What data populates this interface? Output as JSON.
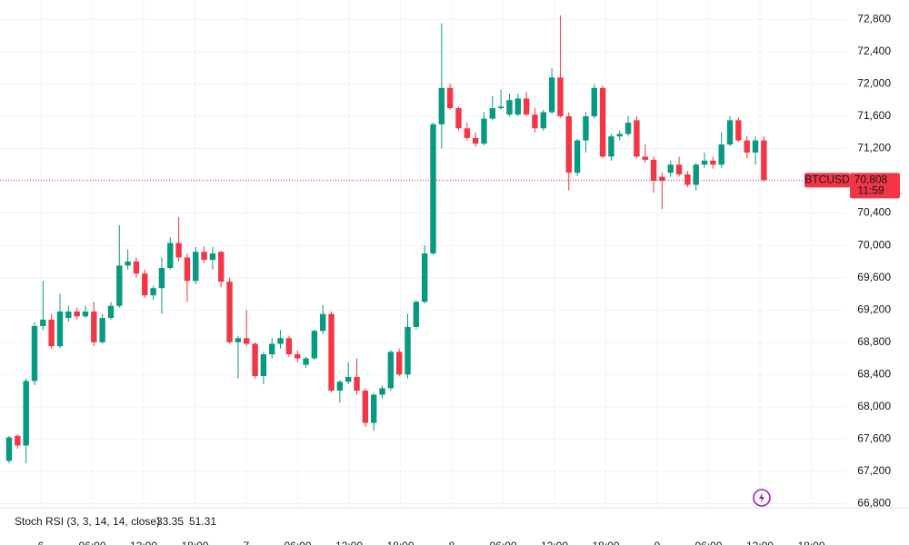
{
  "chart_data": {
    "type": "candlestick",
    "symbol": "BTCUSD",
    "open": [
      67330,
      67640,
      67520,
      68320,
      69000,
      69080,
      68750,
      69100,
      69180,
      69120,
      69180,
      68800,
      69100,
      69250,
      69750,
      69800,
      69650,
      69380,
      69470,
      69720,
      70030,
      69850,
      69560,
      69920,
      69820,
      69920,
      69550,
      68800,
      68850,
      68780,
      68380,
      68650,
      68780,
      68850,
      68650,
      68520,
      68600,
      68940,
      69150,
      68200,
      68310,
      68370,
      68200,
      67800,
      68150,
      68230,
      68680,
      68400,
      68990,
      69300,
      69900,
      71500,
      71950,
      71700,
      71450,
      71330,
      71260,
      71570,
      71700,
      71620,
      71620,
      71820,
      71620,
      71450,
      71650,
      72080,
      71600,
      70900,
      71300,
      71600,
      71950,
      71100,
      71350,
      71380,
      71550,
      71100,
      71060,
      70850,
      70900,
      71000,
      70880,
      70750,
      71000,
      71050,
      71000,
      71250,
      71550,
      71300,
      71150,
      71300
    ],
    "high": [
      67640,
      67660,
      68350,
      69050,
      69560,
      69150,
      69400,
      69250,
      69230,
      69250,
      69300,
      69150,
      69300,
      70250,
      69950,
      69850,
      69700,
      69500,
      69850,
      70100,
      70350,
      69900,
      69980,
      69990,
      69980,
      69930,
      69600,
      68880,
      69200,
      68800,
      68680,
      68850,
      68950,
      68880,
      68700,
      68620,
      68960,
      69260,
      69180,
      68330,
      68550,
      68600,
      68230,
      68170,
      68260,
      68700,
      68720,
      69150,
      69320,
      70000,
      71520,
      72750,
      72000,
      71720,
      71520,
      71400,
      71650,
      71850,
      71930,
      71880,
      71880,
      71900,
      71700,
      71680,
      72200,
      72850,
      71650,
      71320,
      71650,
      72000,
      71980,
      71380,
      71420,
      71600,
      71600,
      71250,
      71100,
      70900,
      71050,
      71100,
      70920,
      71020,
      71150,
      71100,
      71400,
      71600,
      71580,
      71350,
      71350,
      71350
    ],
    "low": [
      67300,
      67480,
      67300,
      68270,
      68950,
      68720,
      68730,
      69050,
      69080,
      69100,
      68750,
      68780,
      69080,
      69230,
      69700,
      69600,
      69350,
      69320,
      69150,
      69700,
      69800,
      69300,
      69520,
      69780,
      69700,
      69480,
      68780,
      68350,
      68750,
      68350,
      68280,
      68600,
      68720,
      68620,
      68550,
      68480,
      68580,
      68900,
      68180,
      68050,
      68280,
      68150,
      67750,
      67700,
      68100,
      68200,
      68380,
      68350,
      68960,
      69280,
      69880,
      71200,
      71680,
      71420,
      71300,
      71220,
      71240,
      71550,
      71680,
      71600,
      71600,
      71600,
      71400,
      71420,
      71630,
      71580,
      70680,
      70860,
      71150,
      71580,
      71080,
      71050,
      71300,
      71350,
      71080,
      71020,
      70650,
      70450,
      70850,
      70850,
      70720,
      70680,
      70960,
      70950,
      70960,
      71230,
      71280,
      71080,
      71000,
      70790
    ],
    "close": [
      67620,
      67520,
      68320,
      69000,
      69080,
      68750,
      69180,
      69180,
      69120,
      69180,
      68800,
      69100,
      69250,
      69750,
      69800,
      69650,
      69380,
      69470,
      69720,
      70030,
      69850,
      69560,
      69920,
      69820,
      69900,
      69550,
      68800,
      68850,
      68780,
      68380,
      68650,
      68780,
      68850,
      68650,
      68600,
      68600,
      68940,
      69150,
      68200,
      68310,
      68370,
      68200,
      67800,
      68150,
      68230,
      68680,
      68400,
      68990,
      69300,
      69900,
      71500,
      71950,
      71700,
      71450,
      71330,
      71260,
      71570,
      71700,
      71720,
      71800,
      71820,
      71620,
      71450,
      71650,
      72080,
      71600,
      70900,
      71300,
      71600,
      71950,
      71100,
      71350,
      71380,
      71520,
      71100,
      71060,
      70800,
      70800,
      71000,
      70880,
      70750,
      71000,
      71050,
      71000,
      71250,
      71550,
      71300,
      71150,
      71300,
      70808
    ],
    "up_color": "#089981",
    "down_color": "#f23645",
    "ylim": [
      66760,
      73040
    ],
    "yticks": [
      {
        "value": 66800,
        "label": "66,800"
      },
      {
        "value": 67200,
        "label": "67,200"
      },
      {
        "value": 67600,
        "label": "67,600"
      },
      {
        "value": 68000,
        "label": "68,000"
      },
      {
        "value": 68400,
        "label": "68,400"
      },
      {
        "value": 68800,
        "label": "68,800"
      },
      {
        "value": 69200,
        "label": "69,200"
      },
      {
        "value": 69600,
        "label": "69,600"
      },
      {
        "value": 70000,
        "label": "70,000"
      },
      {
        "value": 70400,
        "label": "70,400"
      },
      {
        "value": 70800,
        "label": "70,800"
      },
      {
        "value": 71200,
        "label": "71,200"
      },
      {
        "value": 71600,
        "label": "71,600"
      },
      {
        "value": 72000,
        "label": "72,000"
      },
      {
        "value": 72400,
        "label": "72,400"
      },
      {
        "value": 72800,
        "label": "72,800"
      }
    ],
    "xticks": [
      "6",
      "06:00",
      "12:00",
      "18:00",
      "7",
      "06:00",
      "12:00",
      "18:00",
      "8",
      "06:00",
      "12:00",
      "18:00",
      "9",
      "06:00",
      "12:00",
      "18:00"
    ],
    "last_price": 70808,
    "last_price_label": "70,808",
    "countdown": "11:59",
    "indicator": {
      "name": "Stoch RSI (3, 3, 14, 14, close)",
      "k": 33.35,
      "d": 51.31,
      "k_color": "#2962ff",
      "d_color": "#ff6d00"
    },
    "grid": true
  }
}
